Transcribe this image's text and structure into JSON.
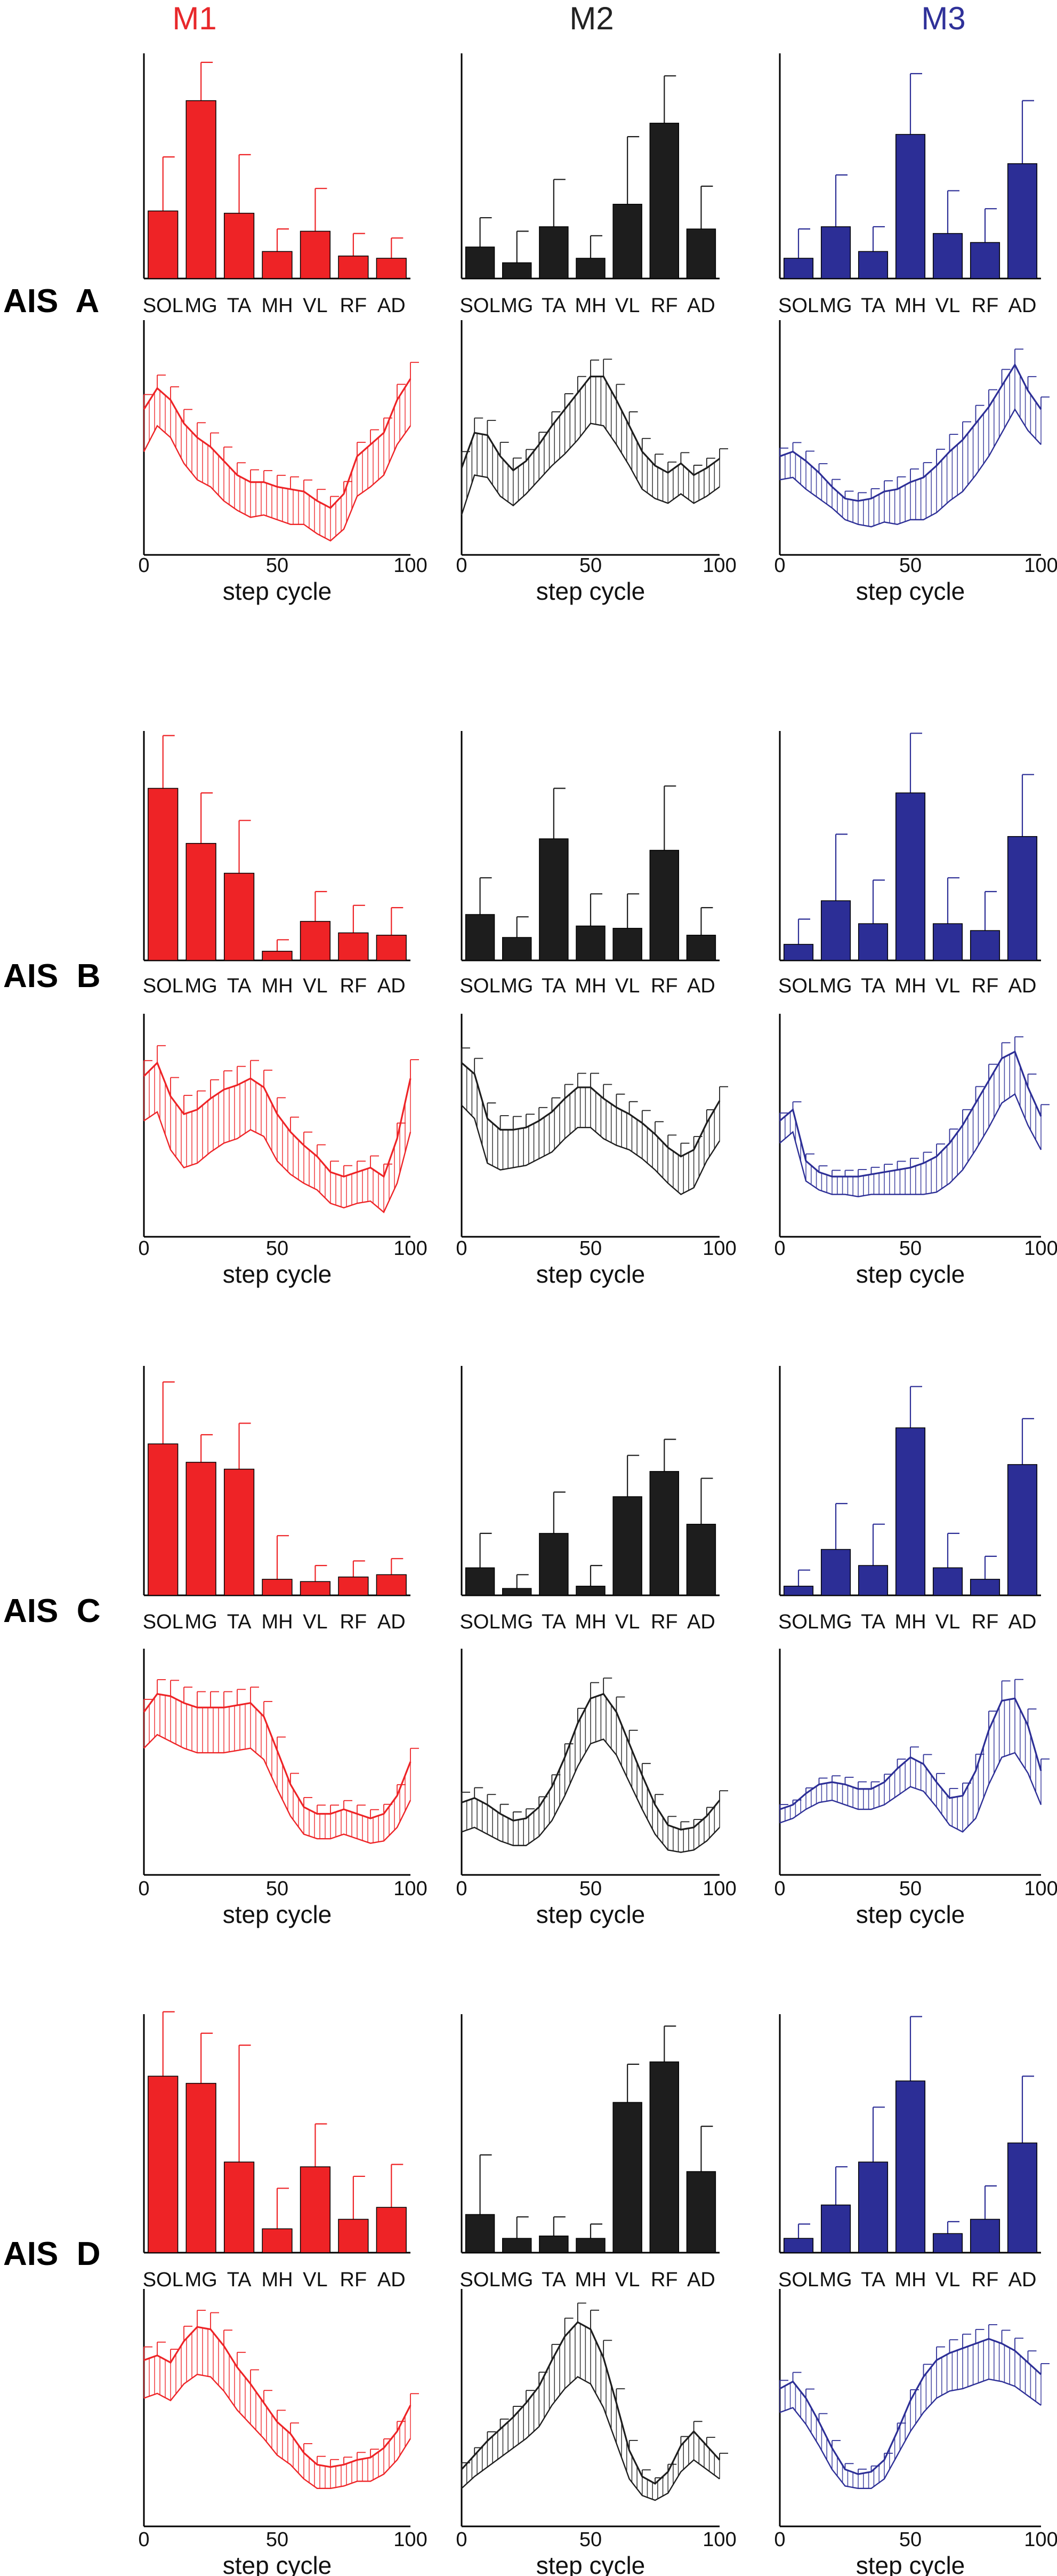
{
  "module_titles": [
    {
      "label": "M1",
      "color": "#e8282b"
    },
    {
      "label": "M2",
      "color": "#222222"
    },
    {
      "label": "M3",
      "color": "#2f3199"
    }
  ],
  "colors": {
    "M1": "#ee2326",
    "M2": "#1d1d1d",
    "M3": "#2c2e96"
  },
  "muscles": [
    "SOL",
    "MG",
    "TA",
    "MH",
    "VL",
    "RF",
    "AD"
  ],
  "xaxis": {
    "ticks": [
      "0",
      "50",
      "100"
    ],
    "label": "step cycle"
  },
  "chart_data": [
    {
      "type": "bar",
      "group": "AIS A",
      "module": "M1",
      "categories": [
        "SOL",
        "MG",
        "TA",
        "MH",
        "VL",
        "RF",
        "AD"
      ],
      "values": [
        0.3,
        0.79,
        0.29,
        0.12,
        0.21,
        0.1,
        0.09
      ],
      "errors": [
        0.24,
        0.17,
        0.26,
        0.1,
        0.19,
        0.1,
        0.09
      ],
      "ylim": [
        0,
        1
      ]
    },
    {
      "type": "bar",
      "group": "AIS A",
      "module": "M2",
      "categories": [
        "SOL",
        "MG",
        "TA",
        "MH",
        "VL",
        "RF",
        "AD"
      ],
      "values": [
        0.14,
        0.07,
        0.23,
        0.09,
        0.33,
        0.69,
        0.22
      ],
      "errors": [
        0.13,
        0.14,
        0.21,
        0.1,
        0.3,
        0.21,
        0.19
      ],
      "ylim": [
        0,
        1
      ]
    },
    {
      "type": "bar",
      "group": "AIS A",
      "module": "M3",
      "categories": [
        "SOL",
        "MG",
        "TA",
        "MH",
        "VL",
        "RF",
        "AD"
      ],
      "values": [
        0.09,
        0.23,
        0.12,
        0.64,
        0.2,
        0.16,
        0.51
      ],
      "errors": [
        0.13,
        0.23,
        0.11,
        0.27,
        0.19,
        0.15,
        0.28
      ],
      "ylim": [
        0,
        1
      ]
    },
    {
      "type": "line",
      "group": "AIS A",
      "module": "M1",
      "x": [
        0,
        5,
        10,
        15,
        20,
        25,
        30,
        35,
        40,
        45,
        50,
        55,
        60,
        65,
        70,
        75,
        80,
        85,
        90,
        95,
        100
      ],
      "mean": [
        0.62,
        0.71,
        0.66,
        0.56,
        0.5,
        0.46,
        0.4,
        0.34,
        0.31,
        0.31,
        0.29,
        0.28,
        0.27,
        0.23,
        0.2,
        0.26,
        0.42,
        0.47,
        0.52,
        0.66,
        0.75
      ],
      "sd": [
        0.18,
        0.16,
        0.16,
        0.17,
        0.18,
        0.17,
        0.17,
        0.15,
        0.15,
        0.14,
        0.14,
        0.15,
        0.14,
        0.14,
        0.14,
        0.15,
        0.17,
        0.18,
        0.18,
        0.19,
        0.2
      ],
      "ylim": [
        0,
        1
      ]
    },
    {
      "type": "line",
      "group": "AIS A",
      "module": "M2",
      "x": [
        0,
        5,
        10,
        15,
        20,
        25,
        30,
        35,
        40,
        45,
        50,
        55,
        60,
        65,
        70,
        75,
        80,
        85,
        90,
        95,
        100
      ],
      "mean": [
        0.37,
        0.52,
        0.51,
        0.42,
        0.36,
        0.4,
        0.47,
        0.55,
        0.62,
        0.69,
        0.76,
        0.76,
        0.66,
        0.55,
        0.44,
        0.38,
        0.35,
        0.39,
        0.34,
        0.37,
        0.41
      ],
      "sd": [
        0.2,
        0.18,
        0.18,
        0.17,
        0.15,
        0.14,
        0.15,
        0.17,
        0.19,
        0.2,
        0.2,
        0.21,
        0.19,
        0.17,
        0.16,
        0.14,
        0.13,
        0.13,
        0.12,
        0.12,
        0.12
      ],
      "ylim": [
        0,
        1
      ]
    },
    {
      "type": "line",
      "group": "AIS A",
      "module": "M3",
      "x": [
        0,
        5,
        10,
        15,
        20,
        25,
        30,
        35,
        40,
        45,
        50,
        55,
        60,
        65,
        70,
        75,
        80,
        85,
        90,
        95,
        100
      ],
      "mean": [
        0.42,
        0.44,
        0.4,
        0.35,
        0.29,
        0.24,
        0.23,
        0.24,
        0.27,
        0.28,
        0.31,
        0.33,
        0.38,
        0.44,
        0.49,
        0.56,
        0.63,
        0.72,
        0.81,
        0.7,
        0.62
      ],
      "sd": [
        0.1,
        0.11,
        0.12,
        0.11,
        0.09,
        0.09,
        0.1,
        0.12,
        0.13,
        0.15,
        0.16,
        0.18,
        0.2,
        0.21,
        0.22,
        0.22,
        0.21,
        0.2,
        0.19,
        0.17,
        0.15
      ],
      "ylim": [
        0,
        1
      ]
    },
    {
      "type": "bar",
      "group": "AIS B",
      "module": "M1",
      "categories": [
        "SOL",
        "MG",
        "TA",
        "MH",
        "VL",
        "RF",
        "AD"
      ],
      "values": [
        0.75,
        0.51,
        0.38,
        0.04,
        0.17,
        0.12,
        0.11
      ],
      "errors": [
        0.23,
        0.22,
        0.23,
        0.05,
        0.13,
        0.12,
        0.12
      ],
      "ylim": [
        0,
        1
      ]
    },
    {
      "type": "bar",
      "group": "AIS B",
      "module": "M2",
      "categories": [
        "SOL",
        "MG",
        "TA",
        "MH",
        "VL",
        "RF",
        "AD"
      ],
      "values": [
        0.2,
        0.1,
        0.53,
        0.15,
        0.14,
        0.48,
        0.11
      ],
      "errors": [
        0.16,
        0.09,
        0.22,
        0.14,
        0.15,
        0.28,
        0.12
      ],
      "ylim": [
        0,
        1
      ]
    },
    {
      "type": "bar",
      "group": "AIS B",
      "module": "M3",
      "categories": [
        "SOL",
        "MG",
        "TA",
        "MH",
        "VL",
        "RF",
        "AD"
      ],
      "values": [
        0.07,
        0.26,
        0.16,
        0.73,
        0.16,
        0.13,
        0.54
      ],
      "errors": [
        0.11,
        0.29,
        0.19,
        0.26,
        0.2,
        0.17,
        0.27
      ],
      "ylim": [
        0,
        1
      ]
    },
    {
      "type": "line",
      "group": "AIS B",
      "module": "M1",
      "x": [
        0,
        5,
        10,
        15,
        20,
        25,
        30,
        35,
        40,
        45,
        50,
        55,
        60,
        65,
        70,
        75,
        80,
        85,
        90,
        95,
        100
      ],
      "mean": [
        0.72,
        0.78,
        0.63,
        0.55,
        0.57,
        0.62,
        0.66,
        0.68,
        0.71,
        0.67,
        0.55,
        0.47,
        0.41,
        0.36,
        0.29,
        0.27,
        0.29,
        0.31,
        0.27,
        0.44,
        0.71
      ],
      "sd": [
        0.2,
        0.22,
        0.24,
        0.24,
        0.24,
        0.24,
        0.24,
        0.24,
        0.23,
        0.22,
        0.21,
        0.19,
        0.17,
        0.15,
        0.14,
        0.14,
        0.14,
        0.15,
        0.16,
        0.2,
        0.24
      ],
      "ylim": [
        0,
        1
      ]
    },
    {
      "type": "line",
      "group": "AIS B",
      "module": "M2",
      "x": [
        0,
        5,
        10,
        15,
        20,
        25,
        30,
        35,
        40,
        45,
        50,
        55,
        60,
        65,
        70,
        75,
        80,
        85,
        90,
        95,
        100
      ],
      "mean": [
        0.78,
        0.73,
        0.53,
        0.48,
        0.48,
        0.49,
        0.52,
        0.56,
        0.62,
        0.67,
        0.67,
        0.62,
        0.58,
        0.55,
        0.51,
        0.46,
        0.4,
        0.36,
        0.39,
        0.51,
        0.61
      ],
      "sd": [
        0.19,
        0.2,
        0.2,
        0.18,
        0.17,
        0.17,
        0.17,
        0.18,
        0.18,
        0.18,
        0.18,
        0.18,
        0.17,
        0.16,
        0.16,
        0.16,
        0.16,
        0.17,
        0.17,
        0.17,
        0.18
      ],
      "ylim": [
        0,
        1
      ]
    },
    {
      "type": "line",
      "group": "AIS B",
      "module": "M3",
      "x": [
        0,
        5,
        10,
        15,
        20,
        25,
        30,
        35,
        40,
        45,
        50,
        55,
        60,
        65,
        70,
        75,
        80,
        85,
        90,
        95,
        100
      ],
      "mean": [
        0.52,
        0.57,
        0.34,
        0.29,
        0.27,
        0.27,
        0.27,
        0.28,
        0.29,
        0.3,
        0.31,
        0.33,
        0.36,
        0.42,
        0.5,
        0.6,
        0.7,
        0.8,
        0.83,
        0.67,
        0.54
      ],
      "sd": [
        0.1,
        0.1,
        0.09,
        0.08,
        0.08,
        0.08,
        0.09,
        0.09,
        0.1,
        0.11,
        0.12,
        0.14,
        0.16,
        0.18,
        0.2,
        0.21,
        0.21,
        0.2,
        0.19,
        0.17,
        0.15
      ],
      "ylim": [
        0,
        1
      ]
    },
    {
      "type": "bar",
      "group": "AIS C",
      "module": "M1",
      "categories": [
        "SOL",
        "MG",
        "TA",
        "MH",
        "VL",
        "RF",
        "AD"
      ],
      "values": [
        0.66,
        0.58,
        0.55,
        0.07,
        0.06,
        0.08,
        0.09
      ],
      "errors": [
        0.27,
        0.12,
        0.2,
        0.19,
        0.07,
        0.07,
        0.07
      ],
      "ylim": [
        0,
        1
      ]
    },
    {
      "type": "bar",
      "group": "AIS C",
      "module": "M2",
      "categories": [
        "SOL",
        "MG",
        "TA",
        "MH",
        "VL",
        "RF",
        "AD"
      ],
      "values": [
        0.12,
        0.03,
        0.27,
        0.04,
        0.43,
        0.54,
        0.31
      ],
      "errors": [
        0.15,
        0.06,
        0.18,
        0.09,
        0.18,
        0.14,
        0.2
      ],
      "ylim": [
        0,
        1
      ]
    },
    {
      "type": "bar",
      "group": "AIS C",
      "module": "M3",
      "categories": [
        "SOL",
        "MG",
        "TA",
        "MH",
        "VL",
        "RF",
        "AD"
      ],
      "values": [
        0.04,
        0.2,
        0.13,
        0.73,
        0.12,
        0.07,
        0.57
      ],
      "errors": [
        0.07,
        0.2,
        0.18,
        0.18,
        0.15,
        0.1,
        0.2
      ],
      "ylim": [
        0,
        1
      ]
    },
    {
      "type": "line",
      "group": "AIS C",
      "module": "M1",
      "x": [
        0,
        5,
        10,
        15,
        20,
        25,
        30,
        35,
        40,
        45,
        50,
        55,
        60,
        65,
        70,
        75,
        80,
        85,
        90,
        95,
        100
      ],
      "mean": [
        0.72,
        0.8,
        0.79,
        0.76,
        0.74,
        0.74,
        0.74,
        0.75,
        0.76,
        0.7,
        0.55,
        0.4,
        0.3,
        0.27,
        0.27,
        0.29,
        0.27,
        0.25,
        0.27,
        0.35,
        0.5
      ],
      "sd": [
        0.16,
        0.18,
        0.2,
        0.2,
        0.2,
        0.2,
        0.2,
        0.2,
        0.2,
        0.19,
        0.17,
        0.14,
        0.12,
        0.11,
        0.11,
        0.11,
        0.11,
        0.11,
        0.12,
        0.14,
        0.17
      ],
      "ylim": [
        0,
        1
      ]
    },
    {
      "type": "line",
      "group": "AIS C",
      "module": "M2",
      "x": [
        0,
        5,
        10,
        15,
        20,
        25,
        30,
        35,
        40,
        45,
        50,
        55,
        60,
        65,
        70,
        75,
        80,
        85,
        90,
        95,
        100
      ],
      "mean": [
        0.32,
        0.34,
        0.31,
        0.27,
        0.24,
        0.25,
        0.3,
        0.39,
        0.52,
        0.67,
        0.78,
        0.8,
        0.72,
        0.58,
        0.44,
        0.31,
        0.22,
        0.2,
        0.21,
        0.26,
        0.33
      ],
      "sd": [
        0.13,
        0.13,
        0.13,
        0.12,
        0.11,
        0.12,
        0.13,
        0.15,
        0.17,
        0.19,
        0.2,
        0.2,
        0.19,
        0.17,
        0.15,
        0.13,
        0.11,
        0.1,
        0.1,
        0.11,
        0.12
      ],
      "ylim": [
        0,
        1
      ]
    },
    {
      "type": "line",
      "group": "AIS C",
      "module": "M3",
      "x": [
        0,
        5,
        10,
        15,
        20,
        25,
        30,
        35,
        40,
        45,
        50,
        55,
        60,
        65,
        70,
        75,
        80,
        85,
        90,
        95,
        100
      ],
      "mean": [
        0.29,
        0.31,
        0.36,
        0.4,
        0.41,
        0.4,
        0.38,
        0.38,
        0.41,
        0.47,
        0.52,
        0.49,
        0.41,
        0.34,
        0.35,
        0.46,
        0.64,
        0.77,
        0.78,
        0.66,
        0.46
      ],
      "sd": [
        0.06,
        0.06,
        0.07,
        0.08,
        0.08,
        0.09,
        0.09,
        0.09,
        0.1,
        0.12,
        0.13,
        0.12,
        0.11,
        0.12,
        0.16,
        0.21,
        0.24,
        0.25,
        0.24,
        0.21,
        0.15
      ],
      "ylim": [
        0,
        1
      ]
    },
    {
      "type": "bar",
      "group": "AIS D",
      "module": "M1",
      "categories": [
        "SOL",
        "MG",
        "TA",
        "MH",
        "VL",
        "RF",
        "AD"
      ],
      "values": [
        0.74,
        0.71,
        0.38,
        0.1,
        0.36,
        0.14,
        0.19
      ],
      "errors": [
        0.27,
        0.21,
        0.49,
        0.17,
        0.18,
        0.18,
        0.18
      ],
      "ylim": [
        0,
        1
      ]
    },
    {
      "type": "bar",
      "group": "AIS D",
      "module": "M2",
      "categories": [
        "SOL",
        "MG",
        "TA",
        "MH",
        "VL",
        "RF",
        "AD"
      ],
      "values": [
        0.16,
        0.06,
        0.07,
        0.06,
        0.63,
        0.8,
        0.34
      ],
      "errors": [
        0.25,
        0.09,
        0.08,
        0.06,
        0.16,
        0.15,
        0.19
      ],
      "ylim": [
        0,
        1
      ]
    },
    {
      "type": "bar",
      "group": "AIS D",
      "module": "M3",
      "categories": [
        "SOL",
        "MG",
        "TA",
        "MH",
        "VL",
        "RF",
        "AD"
      ],
      "values": [
        0.06,
        0.2,
        0.38,
        0.72,
        0.08,
        0.14,
        0.46
      ],
      "errors": [
        0.06,
        0.16,
        0.23,
        0.27,
        0.05,
        0.14,
        0.28
      ],
      "ylim": [
        0,
        1
      ]
    },
    {
      "type": "line",
      "group": "AIS D",
      "module": "M1",
      "x": [
        0,
        5,
        10,
        15,
        20,
        25,
        30,
        35,
        40,
        45,
        50,
        55,
        60,
        65,
        70,
        75,
        80,
        85,
        90,
        95,
        100
      ],
      "mean": [
        0.7,
        0.72,
        0.69,
        0.78,
        0.84,
        0.83,
        0.76,
        0.67,
        0.6,
        0.52,
        0.44,
        0.39,
        0.31,
        0.26,
        0.25,
        0.26,
        0.28,
        0.29,
        0.33,
        0.4,
        0.51
      ],
      "sd": [
        0.16,
        0.16,
        0.16,
        0.18,
        0.2,
        0.2,
        0.19,
        0.18,
        0.17,
        0.15,
        0.14,
        0.13,
        0.11,
        0.1,
        0.09,
        0.09,
        0.09,
        0.1,
        0.11,
        0.12,
        0.14
      ],
      "ylim": [
        0,
        1
      ]
    },
    {
      "type": "line",
      "group": "AIS D",
      "module": "M2",
      "x": [
        0,
        5,
        10,
        15,
        20,
        25,
        30,
        35,
        40,
        45,
        50,
        55,
        60,
        65,
        70,
        75,
        80,
        85,
        90,
        95,
        100
      ],
      "mean": [
        0.24,
        0.3,
        0.36,
        0.41,
        0.46,
        0.52,
        0.59,
        0.7,
        0.8,
        0.86,
        0.83,
        0.71,
        0.52,
        0.32,
        0.21,
        0.18,
        0.23,
        0.34,
        0.4,
        0.34,
        0.28
      ],
      "sd": [
        0.08,
        0.09,
        0.11,
        0.12,
        0.13,
        0.15,
        0.17,
        0.19,
        0.22,
        0.23,
        0.23,
        0.21,
        0.17,
        0.12,
        0.08,
        0.07,
        0.09,
        0.11,
        0.12,
        0.1,
        0.08
      ],
      "ylim": [
        0,
        1
      ]
    },
    {
      "type": "line",
      "group": "AIS D",
      "module": "M3",
      "x": [
        0,
        5,
        10,
        15,
        20,
        25,
        30,
        35,
        40,
        45,
        50,
        55,
        60,
        65,
        70,
        75,
        80,
        85,
        90,
        95,
        100
      ],
      "mean": [
        0.58,
        0.61,
        0.54,
        0.44,
        0.33,
        0.24,
        0.22,
        0.23,
        0.28,
        0.4,
        0.53,
        0.63,
        0.7,
        0.73,
        0.75,
        0.77,
        0.79,
        0.77,
        0.74,
        0.69,
        0.64
      ],
      "sd": [
        0.1,
        0.11,
        0.11,
        0.1,
        0.09,
        0.07,
        0.06,
        0.07,
        0.08,
        0.1,
        0.13,
        0.15,
        0.16,
        0.16,
        0.17,
        0.17,
        0.17,
        0.16,
        0.15,
        0.14,
        0.13
      ],
      "ylim": [
        0,
        1
      ]
    }
  ],
  "rows": [
    {
      "label": "AIS  A"
    },
    {
      "label": "AIS  B"
    },
    {
      "label": "AIS  C"
    },
    {
      "label": "AIS  D"
    }
  ]
}
